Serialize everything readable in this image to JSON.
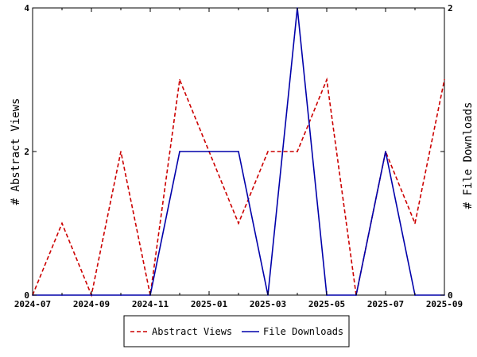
{
  "chart_data": {
    "type": "line",
    "x_tick_labels": [
      "2024-07",
      "2024-09",
      "2024-11",
      "2025-01",
      "2025-03",
      "2025-05",
      "2025-07",
      "2025-09"
    ],
    "x": [
      "2024-07",
      "2024-08",
      "2024-09",
      "2024-10",
      "2024-11",
      "2024-12",
      "2025-01",
      "2025-02",
      "2025-03",
      "2025-04",
      "2025-05",
      "2025-06",
      "2025-07",
      "2025-08",
      "2025-09"
    ],
    "y_left": {
      "label": "# Abstract Views",
      "ylim": [
        0,
        4
      ],
      "ticks": [
        "0",
        "2",
        "4"
      ]
    },
    "y_right": {
      "label": "# File Downloads",
      "ylim": [
        0,
        2
      ],
      "ticks": [
        "0",
        "1",
        "2"
      ]
    },
    "series": [
      {
        "name": "Abstract Views",
        "axis": "left",
        "color": "#cc0000",
        "style": "dashed",
        "values": [
          0,
          1,
          0,
          2,
          0,
          3,
          2,
          1,
          2,
          2,
          3,
          0,
          2,
          1,
          3
        ]
      },
      {
        "name": "File Downloads",
        "axis": "right",
        "color": "#0000aa",
        "style": "solid",
        "values": [
          0,
          0,
          0,
          0,
          0,
          1,
          1,
          1,
          0,
          2,
          0,
          0,
          1,
          0,
          0
        ]
      }
    ],
    "grid": false,
    "legend_position": "bottom-center"
  }
}
